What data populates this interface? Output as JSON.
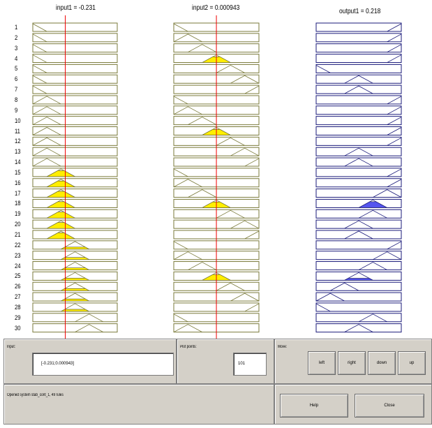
{
  "columns": [
    {
      "title": "input1 = -0.231"
    },
    {
      "title": "input2 = 0.000943"
    },
    {
      "title": "output1 = 0.218"
    }
  ],
  "rule_numbers": [
    "1",
    "2",
    "3",
    "4",
    "5",
    "6",
    "7",
    "8",
    "9",
    "10",
    "11",
    "12",
    "13",
    "14",
    "15",
    "16",
    "17",
    "18",
    "19",
    "20",
    "21",
    "22",
    "23",
    "24",
    "25",
    "26",
    "27",
    "28",
    "29",
    "30"
  ],
  "rules": [
    {
      "in1": 0,
      "in2": 0,
      "out": 6
    },
    {
      "in1": 0,
      "in2": 1,
      "out": 6
    },
    {
      "in1": 0,
      "in2": 2,
      "out": 6
    },
    {
      "in1": 0,
      "in2": 3,
      "out": 6,
      "f2": 0.75
    },
    {
      "in1": 0,
      "in2": 4,
      "out": 0
    },
    {
      "in1": 0,
      "in2": 5,
      "out": 3
    },
    {
      "in1": 0,
      "in2": 6,
      "out": 3
    },
    {
      "in1": 1,
      "in2": 0,
      "out": 6
    },
    {
      "in1": 1,
      "in2": 1,
      "out": 6
    },
    {
      "in1": 1,
      "in2": 2,
      "out": 6
    },
    {
      "in1": 1,
      "in2": 3,
      "out": 6,
      "f2": 0.75
    },
    {
      "in1": 1,
      "in2": 4,
      "out": 6
    },
    {
      "in1": 1,
      "in2": 5,
      "out": 3
    },
    {
      "in1": 1,
      "in2": 6,
      "out": 3
    },
    {
      "in1": 2,
      "in2": 0,
      "out": 6,
      "f1": 0.78
    },
    {
      "in1": 2,
      "in2": 1,
      "out": 6,
      "f1": 0.78
    },
    {
      "in1": 2,
      "in2": 2,
      "out": 5,
      "f1": 0.78
    },
    {
      "in1": 2,
      "in2": 3,
      "out": 4,
      "f1": 0.78,
      "f2": 0.75,
      "fo": 0.78
    },
    {
      "in1": 2,
      "in2": 4,
      "out": 4,
      "f1": 0.78
    },
    {
      "in1": 2,
      "in2": 5,
      "out": 3,
      "f1": 0.78
    },
    {
      "in1": 2,
      "in2": 6,
      "out": 3,
      "f1": 0.78
    },
    {
      "in1": 3,
      "in2": 0,
      "out": 6,
      "f1": 0.27
    },
    {
      "in1": 3,
      "in2": 1,
      "out": 5,
      "f1": 0.27
    },
    {
      "in1": 3,
      "in2": 2,
      "out": 4,
      "f1": 0.27
    },
    {
      "in1": 3,
      "in2": 3,
      "out": 3,
      "f1": 0.27,
      "f2": 0.75,
      "fo": 0.27
    },
    {
      "in1": 3,
      "in2": 4,
      "out": 2,
      "f1": 0.27
    },
    {
      "in1": 3,
      "in2": 5,
      "out": 1,
      "f1": 0.27
    },
    {
      "in1": 3,
      "in2": 6,
      "out": 0,
      "f1": 0.27
    },
    {
      "in1": 4,
      "in2": 0,
      "out": 4
    },
    {
      "in1": 4,
      "in2": 1,
      "out": 3
    }
  ],
  "crosshair": {
    "input1": -0.231,
    "input2": 0.000943,
    "range": [
      -1,
      1
    ]
  },
  "colors": {
    "input_box": "#7a7a3a",
    "output_box": "#1a1a7a",
    "fill_in": "#ffee00",
    "fill_out": "#5555ee",
    "crosshair": "#ee0000"
  },
  "controls": {
    "input_label": "Input:",
    "input_value": "[-0.231;0.000943]",
    "plot_points_label": "Plot points:",
    "plot_points_value": "101",
    "move_label": "Move:",
    "left": "left",
    "right": "right",
    "down": "down",
    "up": "up",
    "status": "Opened system stab_cont_1, 49 rules",
    "help": "Help",
    "close": "Close"
  }
}
